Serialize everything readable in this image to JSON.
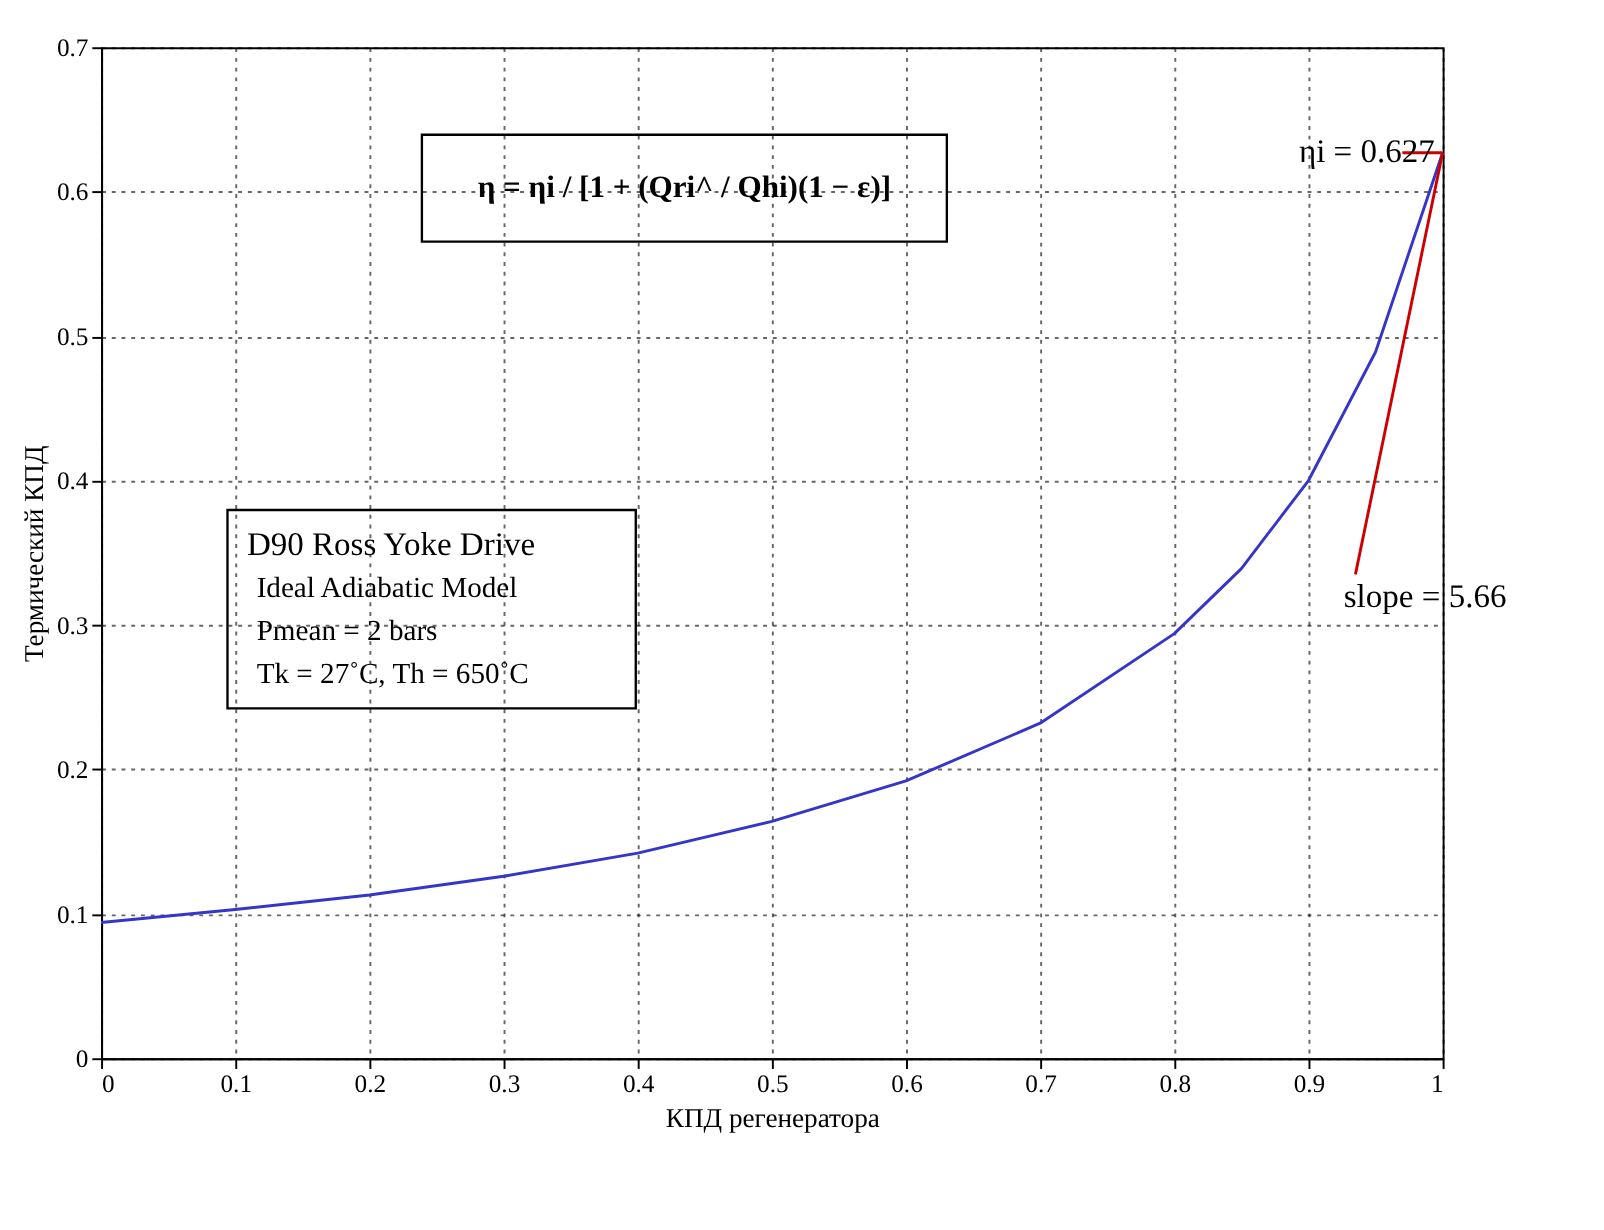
{
  "chart_data": {
    "type": "line",
    "xlabel": "КПД регенератора",
    "ylabel": "Термический КПД",
    "xlim": [
      0,
      1
    ],
    "ylim": [
      0,
      0.7
    ],
    "xticks": [
      0,
      0.1,
      0.2,
      0.3,
      0.4,
      0.5,
      0.6,
      0.7,
      0.8,
      0.9,
      1
    ],
    "yticks": [
      0,
      0.1,
      0.2,
      0.3,
      0.4,
      0.5,
      0.6,
      0.7
    ],
    "grid": true,
    "line_style": "solid",
    "marker": "none",
    "series": [
      {
        "color": "#3535c8",
        "x": [
          0,
          0.1,
          0.2,
          0.3,
          0.4,
          0.5,
          0.6,
          0.7,
          0.8,
          0.85,
          0.9,
          0.95,
          1
        ],
        "values": [
          0.094,
          0.103,
          0.113,
          0.126,
          0.142,
          0.164,
          0.192,
          0.232,
          0.294,
          0.339,
          0.4,
          0.489,
          0.627
        ]
      },
      {
        "color": "#cc0000",
        "x": [
          0.935,
          1.0
        ],
        "values": [
          0.335,
          0.627
        ]
      },
      {
        "color": "#cc0000",
        "x": [
          0.97,
          1.0
        ],
        "values": [
          0.627,
          0.627
        ]
      }
    ],
    "annotations": [
      "η = ηi / [1 + (Qri^ / Qhi)(1 − ε)]",
      "D90 Ross Yoke Drive",
      "Ideal Adiabatic Model",
      "Pmean = 2 bars",
      "Tk = 27˚C, Th = 650˚C",
      {
        "text": "ηi = 0.627",
        "x": 1,
        "y": 0.627
      },
      {
        "text": "slope = 5.66",
        "x": 0.935,
        "y": 0.33
      }
    ]
  }
}
